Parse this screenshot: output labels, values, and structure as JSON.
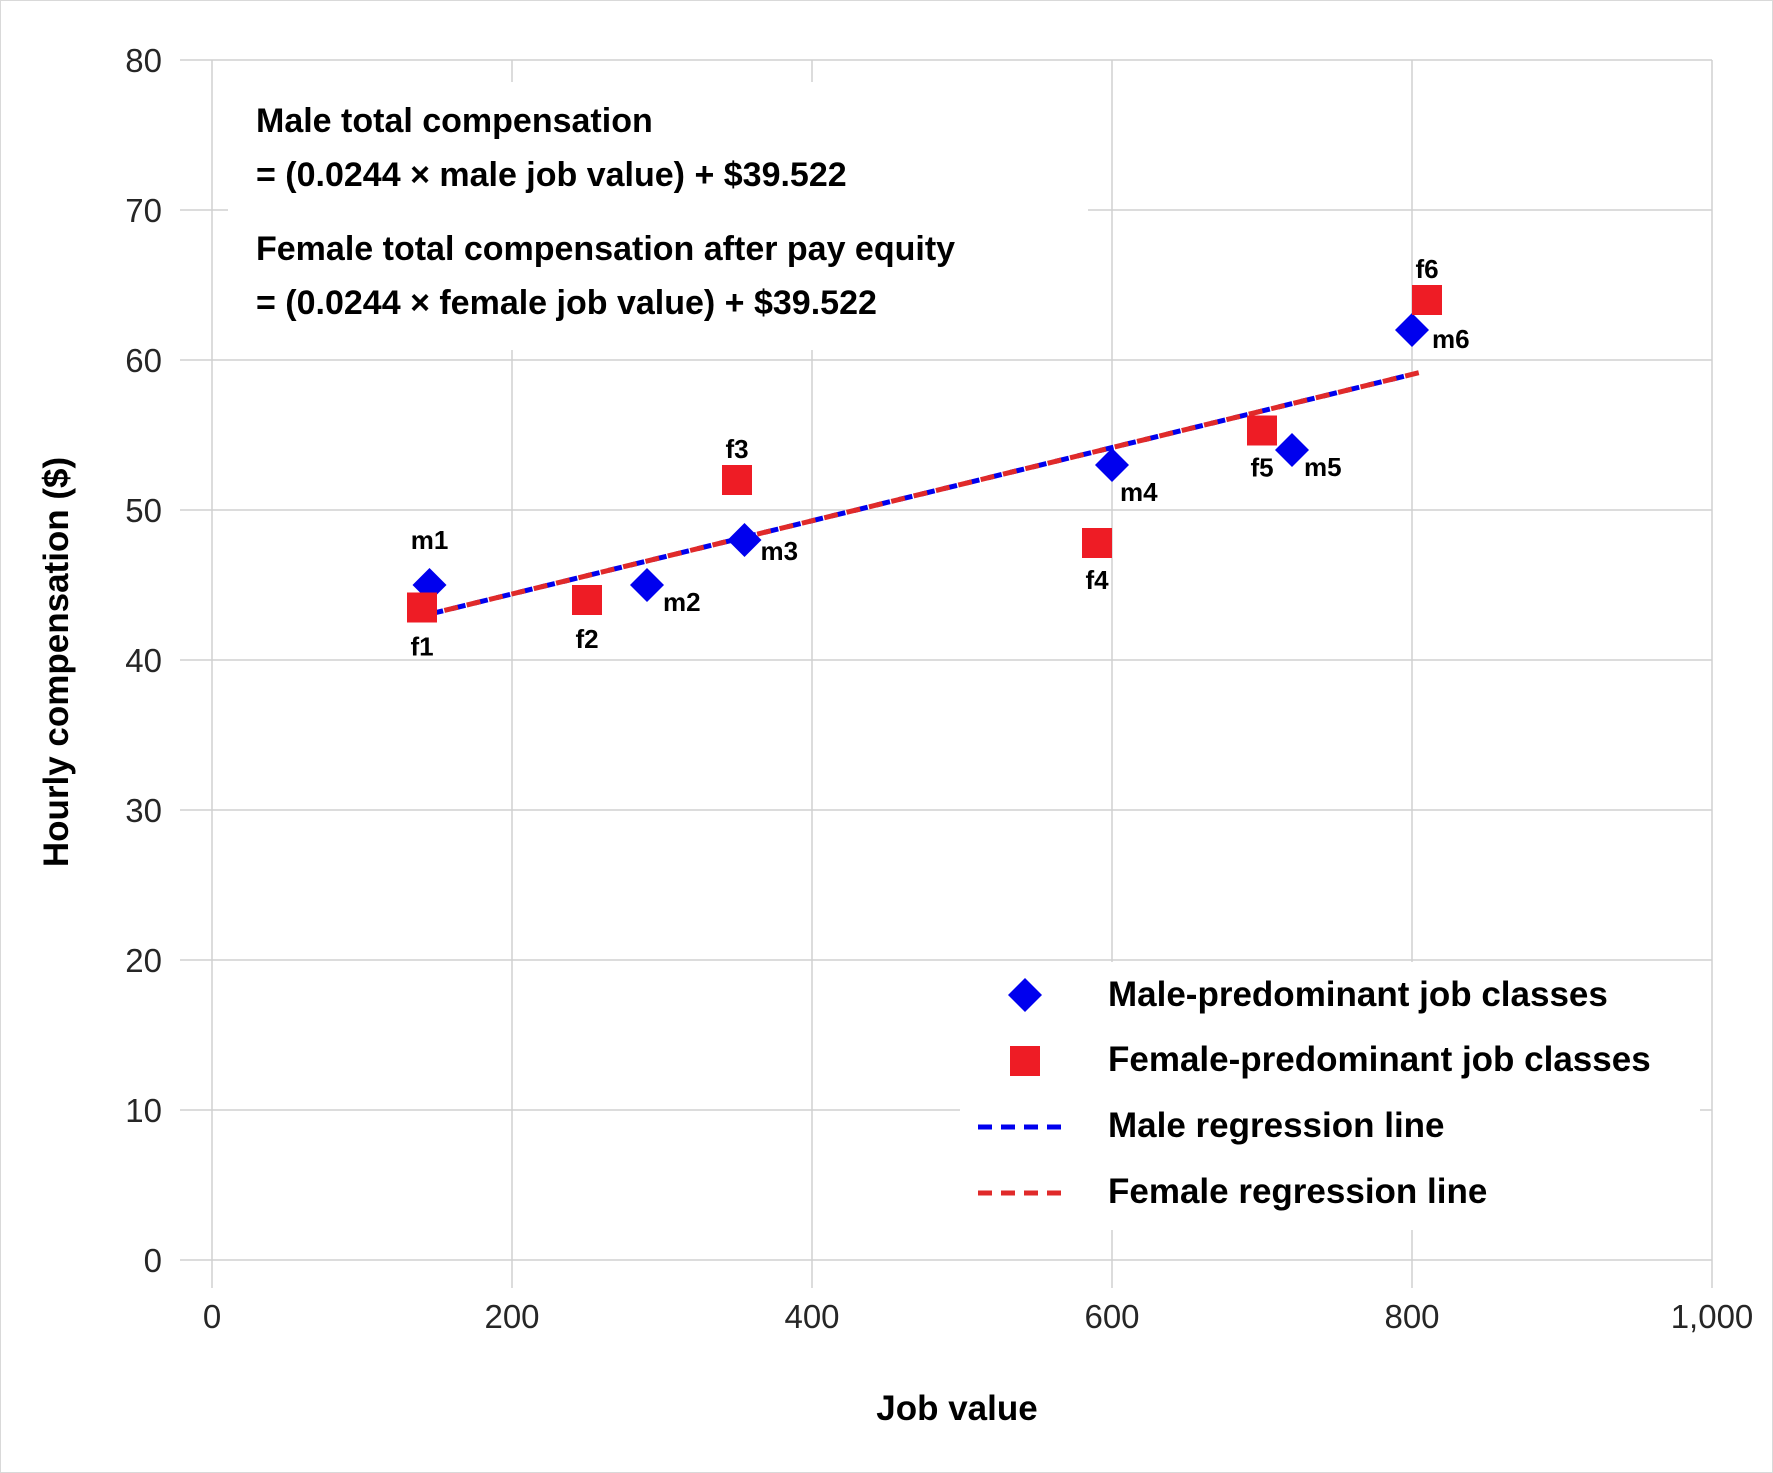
{
  "chart_data": {
    "type": "scatter",
    "xlabel": "Job value",
    "ylabel": "Hourly compensation ($)",
    "xlim": [
      0,
      1000
    ],
    "ylim": [
      0,
      80
    ],
    "x_ticks": [
      0,
      200,
      400,
      600,
      800,
      1000
    ],
    "x_tick_labels": [
      "0",
      "200",
      "400",
      "600",
      "800",
      "1,000"
    ],
    "y_ticks": [
      0,
      10,
      20,
      30,
      40,
      50,
      60,
      70,
      80
    ],
    "y_tick_labels": [
      "0",
      "10",
      "20",
      "30",
      "40",
      "50",
      "60",
      "70",
      "80"
    ],
    "grid": true,
    "legend_position": "bottom-right",
    "annotations": [
      "Male total compensation",
      "= (0.0244 × male job value) + $39.522",
      "Female total compensation after pay equity",
      "= (0.0244 × female job value) + $39.522"
    ],
    "series": [
      {
        "name": "Male-predominant job classes",
        "marker": "diamond",
        "color": "#0000ee",
        "points": [
          {
            "label": "m1",
            "x": 145,
            "y": 45
          },
          {
            "label": "m2",
            "x": 290,
            "y": 45
          },
          {
            "label": "m3",
            "x": 355,
            "y": 48
          },
          {
            "label": "m4",
            "x": 600,
            "y": 53
          },
          {
            "label": "m5",
            "x": 720,
            "y": 54
          },
          {
            "label": "m6",
            "x": 800,
            "y": 62
          }
        ]
      },
      {
        "name": "Female-predominant job classes",
        "marker": "square",
        "color": "#ee1c25",
        "points": [
          {
            "label": "f1",
            "x": 140,
            "y": 43.5
          },
          {
            "label": "f2",
            "x": 250,
            "y": 44
          },
          {
            "label": "f3",
            "x": 350,
            "y": 52
          },
          {
            "label": "f4",
            "x": 590,
            "y": 47.8
          },
          {
            "label": "f5",
            "x": 700,
            "y": 55.3
          },
          {
            "label": "f6",
            "x": 810,
            "y": 64
          }
        ]
      }
    ],
    "lines": [
      {
        "name": "Male regression line",
        "style": "dashed",
        "color": "#0000ee",
        "slope": 0.0244,
        "intercept": 39.522,
        "x_range": [
          145,
          800
        ]
      },
      {
        "name": "Female regression line",
        "style": "dashed",
        "color": "#e02a2a",
        "slope": 0.0244,
        "intercept": 39.522,
        "x_range": [
          140,
          810
        ]
      }
    ]
  }
}
